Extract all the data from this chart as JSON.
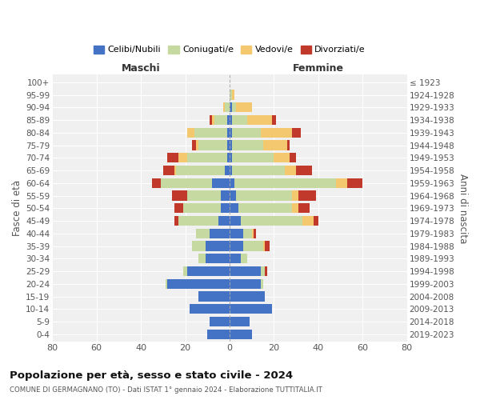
{
  "age_groups": [
    "0-4",
    "5-9",
    "10-14",
    "15-19",
    "20-24",
    "25-29",
    "30-34",
    "35-39",
    "40-44",
    "45-49",
    "50-54",
    "55-59",
    "60-64",
    "65-69",
    "70-74",
    "75-79",
    "80-84",
    "85-89",
    "90-94",
    "95-99",
    "100+"
  ],
  "birth_years": [
    "2019-2023",
    "2014-2018",
    "2009-2013",
    "2004-2008",
    "1999-2003",
    "1994-1998",
    "1989-1993",
    "1984-1988",
    "1979-1983",
    "1974-1978",
    "1969-1973",
    "1964-1968",
    "1959-1963",
    "1954-1958",
    "1949-1953",
    "1944-1948",
    "1939-1943",
    "1934-1938",
    "1929-1933",
    "1924-1928",
    "≤ 1923"
  ],
  "maschi": {
    "celibi": [
      10,
      9,
      18,
      14,
      28,
      19,
      11,
      11,
      9,
      5,
      4,
      4,
      8,
      2,
      1,
      1,
      1,
      1,
      0,
      0,
      0
    ],
    "coniugati": [
      0,
      0,
      0,
      0,
      1,
      2,
      3,
      6,
      6,
      18,
      17,
      15,
      23,
      22,
      18,
      13,
      15,
      6,
      2,
      0,
      0
    ],
    "vedovi": [
      0,
      0,
      0,
      0,
      0,
      0,
      0,
      0,
      0,
      0,
      0,
      0,
      0,
      1,
      4,
      1,
      3,
      1,
      1,
      0,
      0
    ],
    "divorziati": [
      0,
      0,
      0,
      0,
      0,
      0,
      0,
      0,
      0,
      2,
      4,
      7,
      4,
      5,
      5,
      2,
      0,
      1,
      0,
      0,
      0
    ]
  },
  "femmine": {
    "nubili": [
      10,
      9,
      19,
      16,
      14,
      14,
      5,
      6,
      6,
      5,
      4,
      3,
      2,
      1,
      1,
      1,
      1,
      1,
      1,
      0,
      0
    ],
    "coniugate": [
      0,
      0,
      0,
      0,
      1,
      2,
      3,
      9,
      4,
      28,
      24,
      25,
      46,
      24,
      19,
      14,
      13,
      7,
      2,
      1,
      0
    ],
    "vedove": [
      0,
      0,
      0,
      0,
      0,
      0,
      0,
      1,
      1,
      5,
      3,
      3,
      5,
      5,
      7,
      11,
      14,
      11,
      7,
      1,
      0
    ],
    "divorziate": [
      0,
      0,
      0,
      0,
      0,
      1,
      0,
      2,
      1,
      2,
      5,
      8,
      7,
      7,
      3,
      1,
      4,
      2,
      0,
      0,
      0
    ]
  },
  "colors": {
    "celibi": "#4472c4",
    "coniugati": "#c5d9a0",
    "vedovi": "#f4c86e",
    "divorziati": "#c0392b"
  },
  "title": "Popolazione per età, sesso e stato civile - 2024",
  "subtitle": "COMUNE DI GERMAGNANO (TO) - Dati ISTAT 1° gennaio 2024 - Elaborazione TUTTITALIA.IT",
  "xlabel_left": "Maschi",
  "xlabel_right": "Femmine",
  "ylabel_left": "Fasce di età",
  "ylabel_right": "Anni di nascita",
  "xlim": 80,
  "legend_labels": [
    "Celibi/Nubili",
    "Coniugati/e",
    "Vedovi/e",
    "Divorziati/e"
  ],
  "background_color": "#ffffff",
  "grid_color": "#cccccc"
}
